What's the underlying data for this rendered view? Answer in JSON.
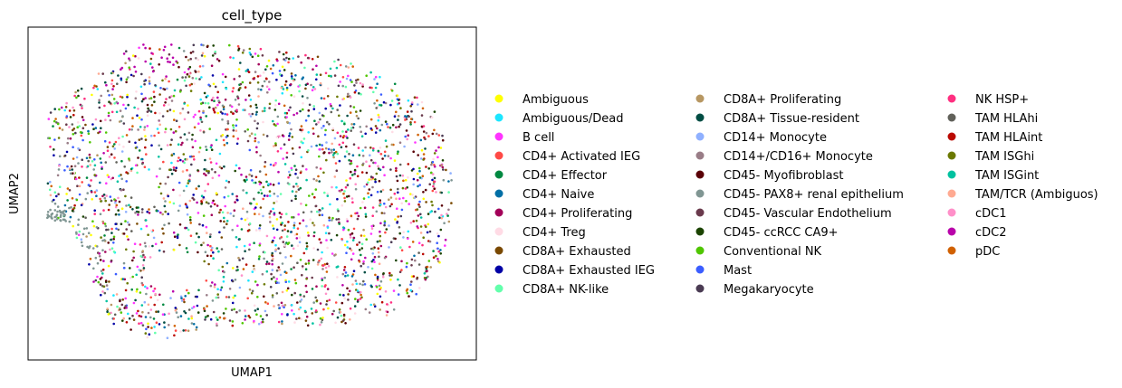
{
  "chart_data": {
    "type": "scatter",
    "title": "cell_type",
    "xlabel": "UMAP1",
    "ylabel": "UMAP2",
    "grid": false,
    "axis_ticks": false,
    "legend_position": "right",
    "legend_columns": 3,
    "marker_size": "small",
    "series": [
      {
        "name": "Ambiguous",
        "color": "#ffff00"
      },
      {
        "name": "Ambiguous/Dead",
        "color": "#1ce6ff"
      },
      {
        "name": "B cell",
        "color": "#ff34ff"
      },
      {
        "name": "CD4+ Activated IEG",
        "color": "#ff4a46"
      },
      {
        "name": "CD4+ Effector",
        "color": "#008941"
      },
      {
        "name": "CD4+ Naive",
        "color": "#006fa6"
      },
      {
        "name": "CD4+ Proliferating",
        "color": "#a30059"
      },
      {
        "name": "CD4+ Treg",
        "color": "#ffdbe5"
      },
      {
        "name": "CD8A+ Exhausted",
        "color": "#7a4900"
      },
      {
        "name": "CD8A+ Exhausted IEG",
        "color": "#0000a6"
      },
      {
        "name": "CD8A+ NK-like",
        "color": "#63ffac"
      },
      {
        "name": "CD8A+ Proliferating",
        "color": "#b79762"
      },
      {
        "name": "CD8A+ Tissue-resident",
        "color": "#004d43"
      },
      {
        "name": "CD14+ Monocyte",
        "color": "#8fb0ff"
      },
      {
        "name": "CD14+/CD16+ Monocyte",
        "color": "#997d87"
      },
      {
        "name": "CD45- Myofibroblast",
        "color": "#5a0007"
      },
      {
        "name": "CD45- PAX8+ renal epithelium",
        "color": "#809693"
      },
      {
        "name": "CD45- Vascular Endothelium",
        "color": "#6a3a4c"
      },
      {
        "name": "CD45- ccRCC CA9+",
        "color": "#1b4400"
      },
      {
        "name": "Conventional NK",
        "color": "#4fc601"
      },
      {
        "name": "Mast",
        "color": "#3b5dff"
      },
      {
        "name": "Megakaryocyte",
        "color": "#4a3b53"
      },
      {
        "name": "NK HSP+",
        "color": "#ff2f80"
      },
      {
        "name": "TAM HLAhi",
        "color": "#61615a"
      },
      {
        "name": "TAM HLAint",
        "color": "#ba0900"
      },
      {
        "name": "TAM ISGhi",
        "color": "#6b7900"
      },
      {
        "name": "TAM ISGint",
        "color": "#00c2a0"
      },
      {
        "name": "TAM/TCR (Ambiguos)",
        "color": "#ffaa92"
      },
      {
        "name": "cDC1",
        "color": "#ff90c9"
      },
      {
        "name": "cDC2",
        "color": "#b903aa"
      },
      {
        "name": "pDC",
        "color": "#d16100"
      }
    ]
  }
}
